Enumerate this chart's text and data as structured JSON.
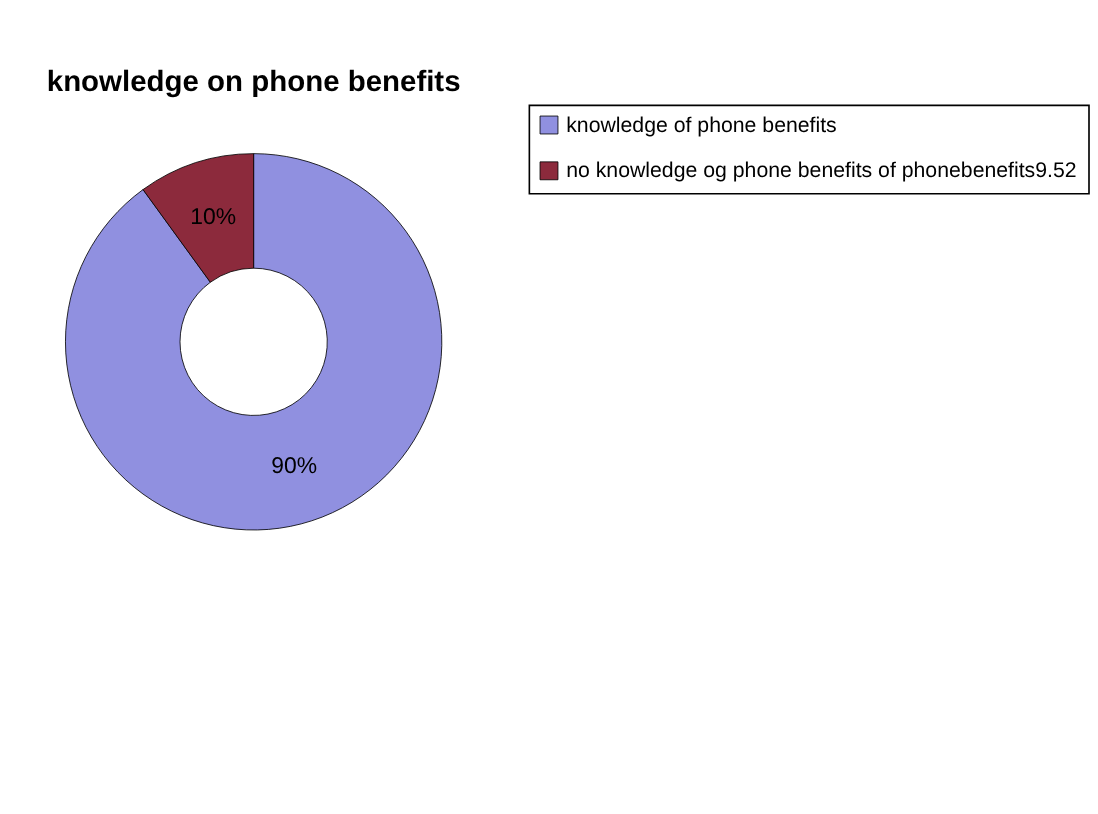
{
  "chart_data": {
    "type": "donut",
    "title": "knowledge on phone benefits",
    "categories": [
      "knowledge of phone benefits",
      "no knowledge og phone benefits of phonebenefits9.52"
    ],
    "values": [
      90,
      10
    ],
    "colors": [
      "#9090e0",
      "#8c2a3c"
    ],
    "value_labels": [
      "90%",
      "10%"
    ],
    "legend": "right"
  }
}
